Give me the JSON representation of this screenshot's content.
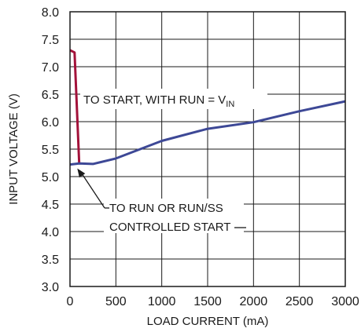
{
  "chart_data": {
    "type": "line",
    "xlabel": "LOAD CURRENT (mA)",
    "ylabel": "INPUT VOLTAGE (V)",
    "xlim": [
      0,
      3000
    ],
    "ylim": [
      3.0,
      8.0
    ],
    "xticks": [
      0,
      500,
      1000,
      1500,
      2000,
      2500,
      3000
    ],
    "yticks": [
      3.0,
      3.5,
      4.0,
      4.5,
      5.0,
      5.5,
      6.0,
      6.5,
      7.0,
      7.5,
      8.0
    ],
    "xtick_labels": [
      "0",
      "500",
      "1000",
      "1500",
      "2000",
      "2500",
      "3000"
    ],
    "ytick_labels": [
      "3.0",
      "3.5",
      "4.0",
      "4.5",
      "5.0",
      "5.5",
      "6.0",
      "6.5",
      "7.0",
      "7.5",
      "8.0"
    ],
    "grid": true,
    "series": [
      {
        "color": "#a3123a",
        "x": [
          0,
          50,
          100
        ],
        "y": [
          7.3,
          7.26,
          5.24
        ]
      },
      {
        "color": "#3d4896",
        "x": [
          0,
          100,
          250,
          500,
          1000,
          1500,
          2000,
          2500,
          3000
        ],
        "y": [
          5.22,
          5.24,
          5.23,
          5.33,
          5.65,
          5.87,
          5.99,
          6.19,
          6.37
        ]
      }
    ],
    "annotations": [
      {
        "id": "start",
        "text": "TO START, WITH RUN = V",
        "subscript": "IN"
      },
      {
        "id": "run",
        "lines": [
          "TO RUN OR RUN/SS",
          "CONTROLLED START"
        ]
      }
    ]
  }
}
